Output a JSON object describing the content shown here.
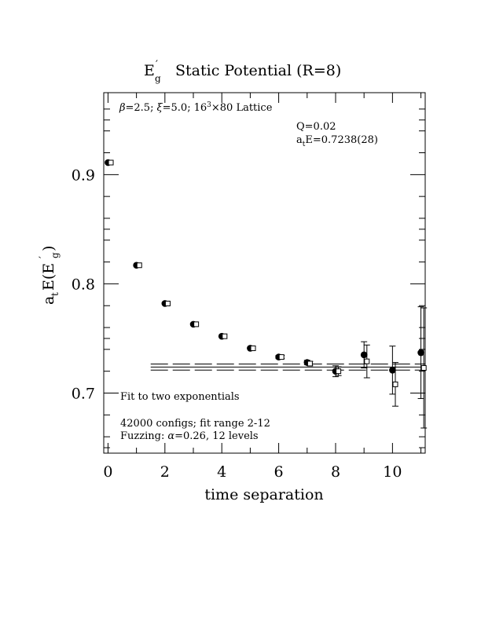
{
  "chart_data": {
    "type": "scatter",
    "title_main": "E",
    "title_sup": "′",
    "title_sub": "g",
    "title_rest": "Static Potential (R=8)",
    "xlabel": "time separation",
    "ylabel_a": "a",
    "ylabel_t": "t",
    "ylabel_E": "E(E",
    "ylabel_prime": "′",
    "ylabel_g": "g",
    "ylabel_close": ")",
    "xlim": [
      -0.15,
      11.15
    ],
    "ylim": [
      0.645,
      0.975
    ],
    "xticks": [
      0,
      2,
      4,
      6,
      8,
      10
    ],
    "xtick_labels": [
      "0",
      "2",
      "4",
      "6",
      "8",
      "10"
    ],
    "yticks": [
      0.7,
      0.8,
      0.9
    ],
    "ytick_labels": [
      "0.7",
      "0.8",
      "0.9"
    ],
    "grid": false,
    "lattice_info": {
      "beta_sym": "β",
      "beta_val": "=2.5;",
      "xi_sym": "ξ",
      "xi_val": "=5.0;",
      "size": "16",
      "size_sup": "3",
      "size_rest": "×80 Lattice"
    },
    "fit_info": {
      "q": "Q=0.02",
      "a": "a",
      "a_sub": "t",
      "energy": "E=0.7238(28)"
    },
    "annotations": {
      "fit_label": "Fit to two exponentials",
      "configs": "42000 configs; fit range 2-12",
      "fuzzing_prefix": "Fuzzing:",
      "fuzzing_alpha": "α",
      "fuzzing_rest": "=0.26, 12 levels"
    },
    "series": [
      {
        "marker": "filled-circle",
        "x": [
          0,
          1,
          2,
          3,
          4,
          5,
          6,
          7,
          8,
          9,
          10,
          11
        ],
        "y": [
          0.911,
          0.817,
          0.782,
          0.763,
          0.752,
          0.741,
          0.733,
          0.728,
          0.72,
          0.735,
          0.721,
          0.737
        ],
        "err": [
          0.001,
          0.001,
          0.001,
          0.001,
          0.001,
          0.001,
          0.0015,
          0.002,
          0.005,
          0.012,
          0.022,
          0.042
        ]
      },
      {
        "marker": "open-square",
        "x": [
          0.1,
          1.1,
          2.1,
          3.1,
          4.1,
          5.1,
          6.1,
          7.1,
          8.1,
          9.1,
          10.1,
          11.1
        ],
        "y": [
          0.911,
          0.817,
          0.782,
          0.763,
          0.752,
          0.741,
          0.733,
          0.727,
          0.72,
          0.729,
          0.708,
          0.723
        ],
        "err": [
          0.001,
          0.001,
          0.001,
          0.001,
          0.001,
          0.001,
          0.0015,
          0.002,
          0.004,
          0.015,
          0.02,
          0.055
        ]
      }
    ],
    "fit": {
      "value": 0.7238,
      "error": 0.0028,
      "x_range": [
        1.5,
        11.15
      ]
    }
  }
}
